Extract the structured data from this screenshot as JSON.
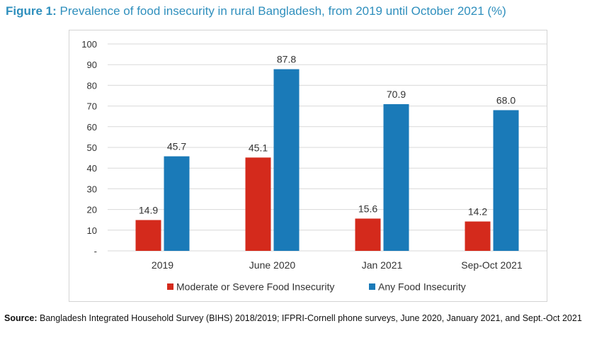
{
  "figure": {
    "label": "Figure 1:",
    "title": "Prevalence of food insecurity in rural Bangladesh, from 2019 until October 2021 (%)"
  },
  "chart_data": {
    "type": "bar",
    "title": "Prevalence of food insecurity in rural Bangladesh, from 2019 until October 2021 (%)",
    "categories": [
      "2019",
      "June 2020",
      "Jan 2021",
      "Sep-Oct 2021"
    ],
    "series": [
      {
        "name": "Moderate or Severe Food Insecurity",
        "values": [
          14.9,
          45.1,
          15.6,
          14.2
        ],
        "labels": [
          "14.9",
          "45.1",
          "15.6",
          "14.2"
        ],
        "color": "#d42a1c"
      },
      {
        "name": "Any Food Insecurity",
        "values": [
          45.7,
          87.8,
          70.9,
          68.0
        ],
        "labels": [
          "45.7",
          "87.8",
          "70.9",
          "68.0"
        ],
        "color": "#1a7ab8"
      }
    ],
    "ylim": [
      0,
      100
    ],
    "yticks": [
      "-",
      "10",
      "20",
      "30",
      "40",
      "50",
      "60",
      "70",
      "80",
      "90",
      "100"
    ],
    "xlabel": "",
    "ylabel": "",
    "grid": true,
    "legend": "bottom"
  },
  "source": {
    "label": "Source:",
    "text": " Bangladesh Integrated Household Survey (BIHS) 2018/2019; IFPRI-Cornell phone surveys, June 2020, January 2021, and Sept.-Oct 2021"
  }
}
